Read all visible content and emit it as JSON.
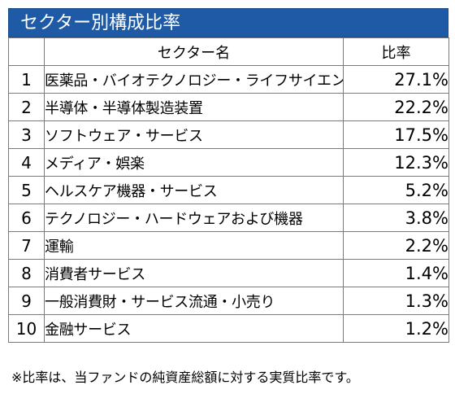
{
  "title": "セクター別構成比率",
  "columns": {
    "no": "",
    "sector": "セクター名",
    "ratio": "比率"
  },
  "rows": [
    {
      "no": "1",
      "sector": "医薬品・バイオテクノロジー・ライフサイエンス",
      "ratio": "27.1%"
    },
    {
      "no": "2",
      "sector": "半導体・半導体製造装置",
      "ratio": "22.2%"
    },
    {
      "no": "3",
      "sector": "ソフトウェア・サービス",
      "ratio": "17.5%"
    },
    {
      "no": "4",
      "sector": "メディア・娯楽",
      "ratio": "12.3%"
    },
    {
      "no": "5",
      "sector": "ヘルスケア機器・サービス",
      "ratio": "5.2%"
    },
    {
      "no": "6",
      "sector": "テクノロジー・ハードウェアおよび機器",
      "ratio": "3.8%"
    },
    {
      "no": "7",
      "sector": "運輸",
      "ratio": "2.2%"
    },
    {
      "no": "8",
      "sector": "消費者サービス",
      "ratio": "1.4%"
    },
    {
      "no": "9",
      "sector": "一般消費財・サービス流通・小売り",
      "ratio": "1.3%"
    },
    {
      "no": "10",
      "sector": "金融サービス",
      "ratio": "1.2%"
    }
  ],
  "footnote": "※比率は、当ファンドの純資産総額に対する実質比率です。",
  "colors": {
    "title_bg": "#1f5aa6",
    "title_text": "#ffffff",
    "border": "#7a7a7a"
  }
}
